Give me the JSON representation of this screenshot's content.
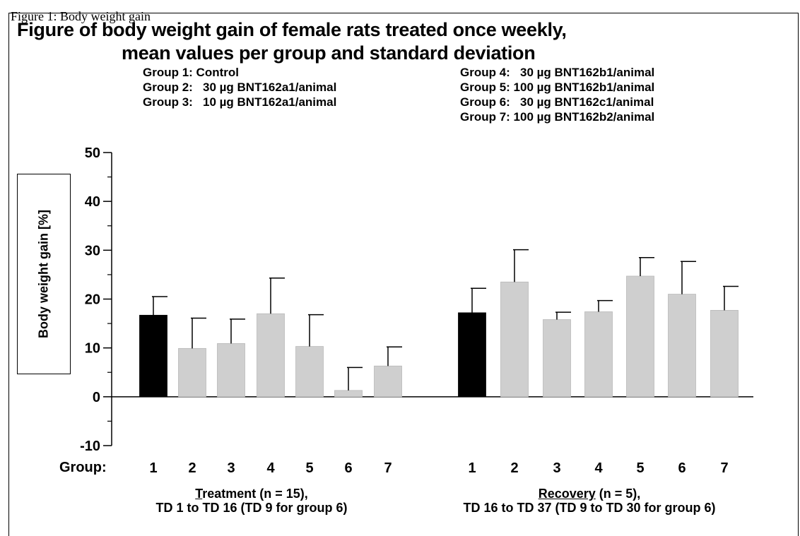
{
  "top_caption": "Figure 1: Body weight gain",
  "title": {
    "line1": "Figure of body weight gain of female rats treated once weekly,",
    "line2": "mean values per group and standard deviation"
  },
  "legend": {
    "left": [
      "Group 1: Control",
      "Group 2:   30 µg BNT162a1/animal",
      "Group 3:   10 µg BNT162a1/animal"
    ],
    "right": [
      "Group 4:   30 µg BNT162b1/animal",
      "Group 5: 100 µg BNT162b1/animal",
      "Group 6:   30 µg BNT162c1/animal",
      "Group 7: 100 µg BNT162b2/animal"
    ]
  },
  "group_prefix": "Group:",
  "periods": {
    "treatment": {
      "keyword_initial": "T",
      "keyword_rest": "reatment",
      "suffix": " (n = 15),",
      "line2": "TD 1 to TD 16 (TD 9 for group 6)"
    },
    "recovery": {
      "keyword": "Recovery",
      "suffix": " (n = 5),",
      "line2": "TD 16 to TD 37 (TD 9 to TD 30 for group 6)"
    }
  },
  "colors": {
    "control": "#000000",
    "treated": "#cfcfcf",
    "axis": "#000000"
  },
  "chart_data": {
    "type": "bar",
    "title": "Figure of body weight gain of female rats treated once weekly, mean values per group and standard deviation",
    "ylabel": "Body weight gain [%]",
    "xlabel": "Group:",
    "ylim": [
      -10,
      50
    ],
    "yticks": [
      -10,
      0,
      10,
      20,
      30,
      40,
      50
    ],
    "grid": false,
    "panels": [
      {
        "name": "Treatment (n = 15), TD 1 to TD 16 (TD 9 for group 6)",
        "categories": [
          "1",
          "2",
          "3",
          "4",
          "5",
          "6",
          "7"
        ],
        "values": [
          16.7,
          9.9,
          10.9,
          17.0,
          10.3,
          1.3,
          6.3
        ],
        "sd": [
          3.8,
          6.2,
          5.0,
          7.3,
          6.5,
          4.7,
          3.9
        ]
      },
      {
        "name": "Recovery (n = 5), TD 16 to TD 37 (TD 9 to TD 30 for group 6)",
        "categories": [
          "1",
          "2",
          "3",
          "4",
          "5",
          "6",
          "7"
        ],
        "values": [
          17.2,
          23.5,
          15.8,
          17.4,
          24.7,
          21.0,
          17.7
        ],
        "sd": [
          5.0,
          6.6,
          1.5,
          2.3,
          3.8,
          6.7,
          4.9
        ]
      }
    ]
  }
}
